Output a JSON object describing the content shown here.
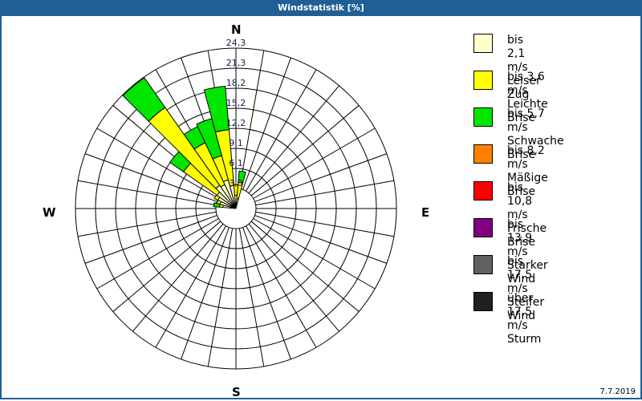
{
  "title": "Windstatistik [%]",
  "date": "7.7.2019",
  "compass": {
    "n": "N",
    "e": "E",
    "s": "S",
    "w": "W"
  },
  "legend": [
    {
      "color": "#ffffcc",
      "speed": "bis 2,1 m/s",
      "name": "Leiser Zug"
    },
    {
      "color": "#ffff00",
      "speed": "bis 3,6 m/s",
      "name": "Leichte Brise"
    },
    {
      "color": "#00e600",
      "speed": "bis 5,7 m/s",
      "name": "Schwache Brise"
    },
    {
      "color": "#ff8000",
      "speed": "bis 8,2 m/s",
      "name": "Mäßige Brise"
    },
    {
      "color": "#ff0000",
      "speed": "bis 10,8 m/s",
      "name": "Frische Brise"
    },
    {
      "color": "#800080",
      "speed": "bis 13,9 m/s",
      "name": "Starker Wind"
    },
    {
      "color": "#606060",
      "speed": "bis 17,5 m/s",
      "name": "Steifer Wind"
    },
    {
      "color": "#202020",
      "speed": "über 17,5 m/s",
      "name": "Sturm"
    }
  ],
  "chart_data": {
    "type": "polar-bar (wind rose)",
    "title": "Windstatistik [%]",
    "units": "%",
    "radial_ticks": [
      "3,0",
      "6,1",
      "9,1",
      "12,2",
      "15,2",
      "18,2",
      "21,3",
      "24,3"
    ],
    "radial_max": 24.3,
    "sector_width_deg": 10,
    "series_names": [
      "bis 2,1 m/s",
      "bis 3,6 m/s",
      "bis 5,7 m/s"
    ],
    "sectors": [
      {
        "dir": 280,
        "cumulative": [
          2.0,
          2.5,
          3.4
        ]
      },
      {
        "dir": 290,
        "cumulative": [
          2.5,
          3.0,
          3.0
        ]
      },
      {
        "dir": 300,
        "cumulative": [
          3.0,
          3.6,
          3.6
        ]
      },
      {
        "dir": 310,
        "cumulative": [
          3.5,
          9.7,
          12.2
        ]
      },
      {
        "dir": 320,
        "cumulative": [
          4.3,
          18.7,
          24.2
        ]
      },
      {
        "dir": 330,
        "cumulative": [
          4.0,
          11.0,
          13.7
        ]
      },
      {
        "dir": 340,
        "cumulative": [
          4.5,
          8.3,
          14.1
        ]
      },
      {
        "dir": 350,
        "cumulative": [
          3.5,
          12.0,
          18.6
        ]
      },
      {
        "dir": 0,
        "cumulative": [
          2.0,
          3.6,
          3.6
        ]
      },
      {
        "dir": 10,
        "cumulative": [
          1.5,
          4.0,
          5.7
        ]
      }
    ]
  }
}
